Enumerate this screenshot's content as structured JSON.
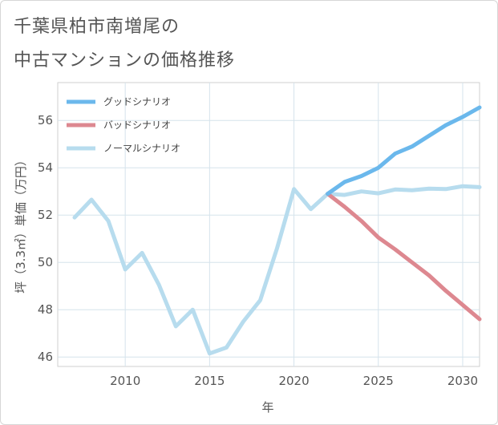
{
  "title": {
    "line1": "千葉県柏市南増尾の",
    "line2": "中古マンションの価格推移"
  },
  "chart_data": {
    "type": "line",
    "title": "千葉県柏市南増尾の中古マンションの価格推移",
    "xlabel": "年",
    "ylabel": "坪（3.3㎡）単価（万円）",
    "xlim": [
      2006,
      2031
    ],
    "ylim": [
      45.6,
      57.6
    ],
    "xticks": [
      2010,
      2015,
      2020,
      2025,
      2030
    ],
    "yticks": [
      46,
      48,
      50,
      52,
      54,
      56
    ],
    "legend_position": "top-left",
    "grid": true,
    "series": [
      {
        "name": "グッドシナリオ",
        "color": "#6bb8ec",
        "x": [
          2022,
          2023,
          2024,
          2025,
          2026,
          2027,
          2028,
          2029,
          2030,
          2031
        ],
        "values": [
          52.9,
          53.4,
          53.65,
          54.0,
          54.6,
          54.9,
          55.35,
          55.8,
          56.15,
          56.55
        ]
      },
      {
        "name": "バッドシナリオ",
        "color": "#dd8890",
        "x": [
          2022,
          2023,
          2024,
          2025,
          2026,
          2027,
          2028,
          2029,
          2030,
          2031
        ],
        "values": [
          52.9,
          52.35,
          51.75,
          51.05,
          50.55,
          50.0,
          49.45,
          48.8,
          48.2,
          47.6
        ]
      },
      {
        "name": "ノーマルシナリオ",
        "color": "#b7dcee",
        "x": [
          2007,
          2008,
          2009,
          2010,
          2011,
          2012,
          2013,
          2014,
          2015,
          2016,
          2017,
          2018,
          2019,
          2020,
          2021,
          2022,
          2023,
          2024,
          2025,
          2026,
          2027,
          2028,
          2029,
          2030,
          2031
        ],
        "values": [
          51.9,
          52.65,
          51.75,
          49.7,
          50.4,
          49.05,
          47.3,
          48.0,
          46.15,
          46.4,
          47.5,
          48.4,
          50.6,
          53.1,
          52.25,
          52.9,
          52.85,
          53.0,
          52.92,
          53.08,
          53.05,
          53.12,
          53.1,
          53.22,
          53.18
        ]
      }
    ]
  }
}
